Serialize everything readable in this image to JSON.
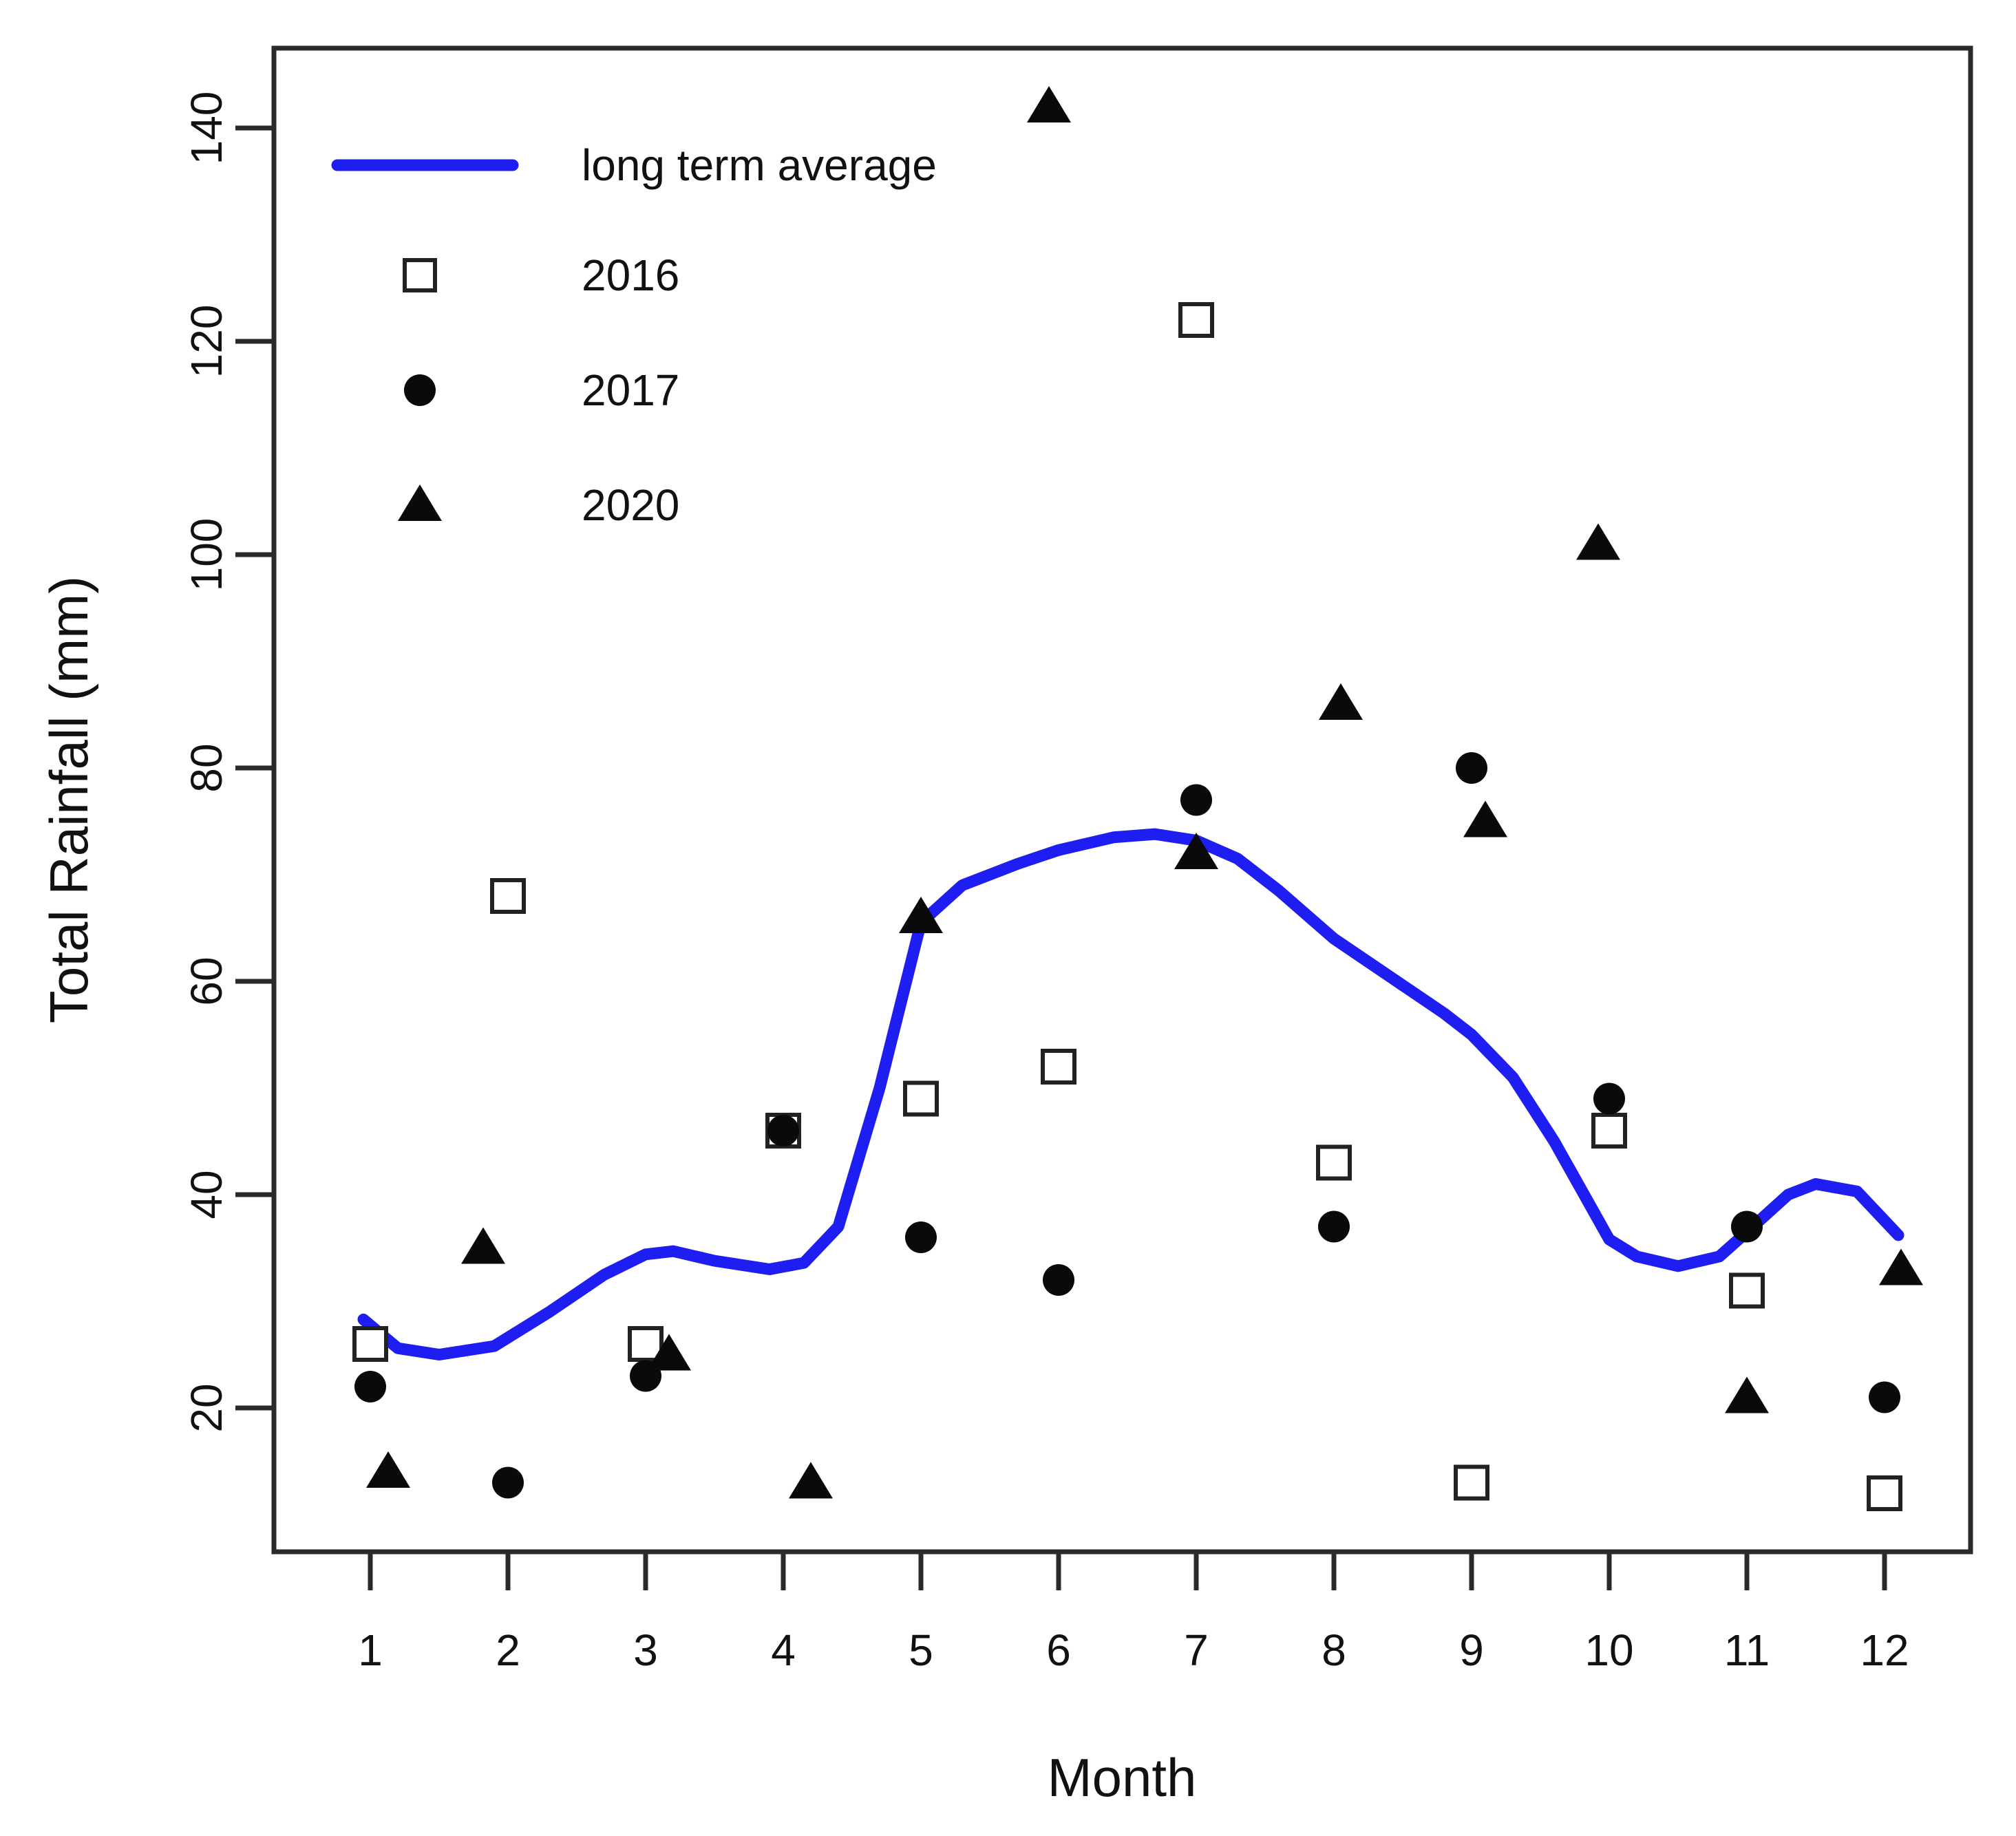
{
  "page": {
    "background": "#ffffff"
  },
  "legend": {
    "position": "top-left",
    "items": [
      {
        "label": "long term average",
        "marker": "line-sample"
      },
      {
        "label": "2016",
        "marker": "open-square"
      },
      {
        "label": "2017",
        "marker": "filled-circle"
      },
      {
        "label": "2020",
        "marker": "filled-triangle"
      }
    ]
  },
  "axes": {
    "x_label": "Month",
    "y_label": "Total Rainfall (mm)",
    "x_ticks": [
      1,
      2,
      3,
      4,
      5,
      6,
      7,
      8,
      9,
      10,
      11,
      12
    ],
    "y_ticks": [
      20,
      40,
      60,
      80,
      100,
      120,
      140
    ]
  },
  "colors": {
    "line_blue": "#1e1ef2",
    "marker_black": "#0a0a0a",
    "axis": "#2a2a2a",
    "text": "#111111",
    "background": "#ffffff"
  },
  "chart_data": {
    "type": "line+scatter",
    "title": "",
    "xlabel": "Month",
    "ylabel": "Total Rainfall (mm)",
    "categories": [
      1,
      2,
      3,
      4,
      5,
      6,
      7,
      8,
      9,
      10,
      11,
      12
    ],
    "xlim": [
      0.45,
      12.62
    ],
    "ylim": [
      6.5,
      147.5
    ],
    "x_ticks": [
      1,
      2,
      3,
      4,
      5,
      6,
      7,
      8,
      9,
      10,
      11,
      12
    ],
    "y_ticks": [
      20,
      40,
      60,
      80,
      100,
      120,
      140
    ],
    "grid": false,
    "legend_position": "top-left",
    "series": [
      {
        "name": "long term average",
        "type": "line",
        "color": "#1e1ef2",
        "monthly_values": [
          28,
          25.5,
          34.4,
          33,
          65.5,
          72.3,
          73.2,
          64,
          55,
          35.8,
          36.5,
          40
        ],
        "line_points": [
          [
            0.95,
            28.3
          ],
          [
            1.2,
            25.6
          ],
          [
            1.5,
            25.0
          ],
          [
            1.9,
            25.8
          ],
          [
            2.3,
            29.0
          ],
          [
            2.7,
            32.5
          ],
          [
            3.0,
            34.4
          ],
          [
            3.2,
            34.7
          ],
          [
            3.5,
            33.8
          ],
          [
            3.9,
            33.0
          ],
          [
            4.15,
            33.6
          ],
          [
            4.4,
            37.0
          ],
          [
            4.7,
            50.0
          ],
          [
            5.0,
            65.5
          ],
          [
            5.3,
            69.0
          ],
          [
            5.7,
            71.0
          ],
          [
            6.0,
            72.3
          ],
          [
            6.4,
            73.5
          ],
          [
            6.7,
            73.8
          ],
          [
            7.0,
            73.2
          ],
          [
            7.3,
            71.5
          ],
          [
            7.6,
            68.5
          ],
          [
            8.0,
            64.0
          ],
          [
            8.4,
            60.5
          ],
          [
            8.8,
            57.0
          ],
          [
            9.0,
            55.0
          ],
          [
            9.3,
            51.0
          ],
          [
            9.6,
            45.0
          ],
          [
            10.0,
            35.8
          ],
          [
            10.2,
            34.2
          ],
          [
            10.5,
            33.3
          ],
          [
            10.8,
            34.2
          ],
          [
            11.0,
            36.5
          ],
          [
            11.3,
            40.0
          ],
          [
            11.5,
            41.0
          ],
          [
            11.8,
            40.3
          ],
          [
            12.1,
            36.2
          ]
        ]
      },
      {
        "name": "2016",
        "type": "scatter",
        "marker": "open-square",
        "values": [
          26,
          68,
          26,
          46,
          49,
          52,
          122,
          43,
          13,
          46,
          31,
          12
        ]
      },
      {
        "name": "2017",
        "type": "scatter",
        "marker": "filled-circle",
        "values": [
          22,
          13,
          23,
          46,
          36,
          32,
          77,
          37,
          80,
          49,
          37,
          21
        ]
      },
      {
        "name": "2020",
        "type": "scatter",
        "marker": "filled-triangle",
        "values": [
          14,
          35,
          25,
          13,
          66,
          142,
          72,
          86,
          75,
          101,
          21,
          33
        ],
        "x_offsets": [
          0.13,
          -0.18,
          0.17,
          0.2,
          0,
          -0.07,
          0,
          0.05,
          0.1,
          -0.08,
          0,
          0.12
        ]
      }
    ]
  }
}
